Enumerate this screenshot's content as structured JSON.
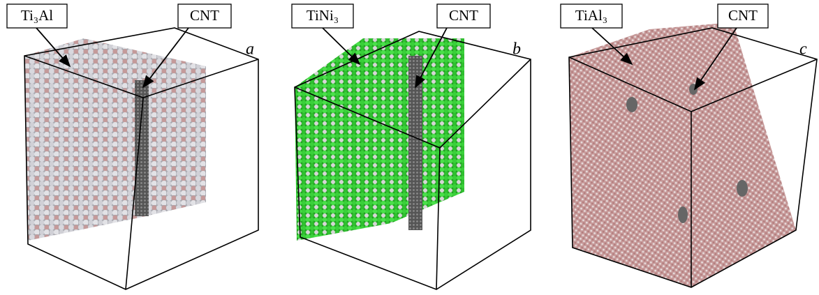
{
  "panels": [
    {
      "letter": "a",
      "material": "Ti₃Al",
      "tube": "CNT"
    },
    {
      "letter": "b",
      "material": "TiNi₃",
      "tube": "CNT"
    },
    {
      "letter": "c",
      "material": "TiAl₃",
      "tube": "CNT"
    }
  ]
}
